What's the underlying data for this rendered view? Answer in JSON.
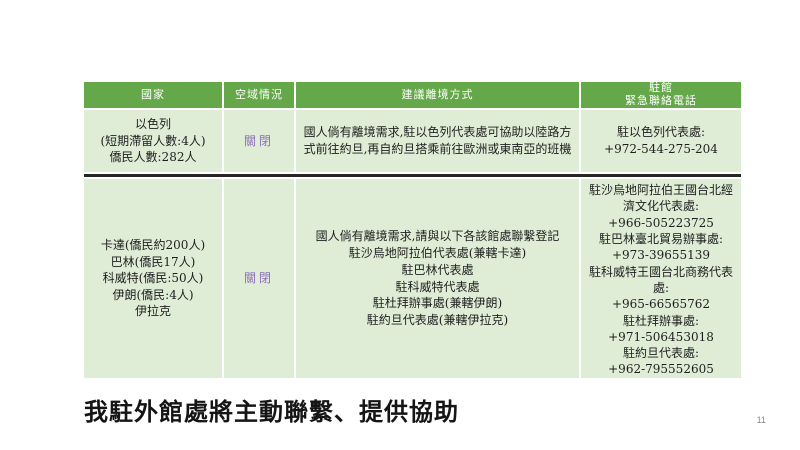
{
  "slide": {
    "footer_title": "我駐外館處將主動聯繫、提供協助",
    "page_number": "11"
  },
  "colors": {
    "header_green": "#65a84a",
    "row_light_green": "#dfecd6",
    "header_text": "#ffffff",
    "closed_status_purple": "#8a70b8",
    "row_divider_dark": "#262626",
    "body_text": "#1f1f1f"
  },
  "table": {
    "headers": {
      "country": "國家",
      "airspace": "空域情況",
      "departure": "建議離境方式",
      "contact": "駐館\n緊急聯絡電話"
    },
    "rows": [
      {
        "country": "以色列\n(短期滯留人數:4人)\n僑民人數:282人",
        "airspace": "關閉",
        "departure": "國人倘有離境需求,駐以色列代表處可協助以陸路方式前往約旦,再自約旦搭乘前往歐洲或東南亞的班機",
        "contact": "駐以色列代表處:\n+972-544-275-204"
      },
      {
        "country": "卡達(僑民約200人)\n巴林(僑民17人)\n科威特(僑民:50人)\n伊朗(僑民:4人)\n伊拉克",
        "airspace": "關閉",
        "departure": "國人倘有離境需求,請與以下各該館處聯繫登記\n駐沙烏地阿拉伯代表處(兼轄卡達)\n駐巴林代表處\n駐科威特代表處\n駐杜拜辦事處(兼轄伊朗)\n駐約旦代表處(兼轄伊拉克)",
        "contact": "駐沙烏地阿拉伯王國台北經濟文化代表處:\n+966-505223725\n駐巴林臺北貿易辦事處:\n+973-39655139\n駐科威特王國台北商務代表處:\n+965-66565762\n駐杜拜辦事處:\n+971-506453018\n駐約旦代表處:\n+962-795552605"
      }
    ]
  }
}
